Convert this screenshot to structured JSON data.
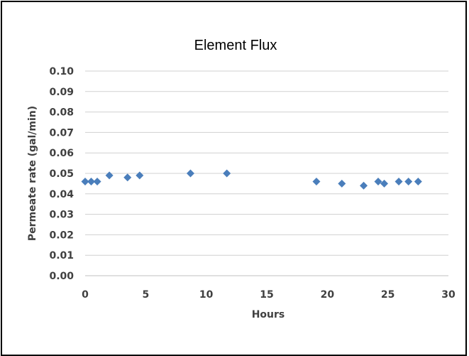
{
  "chart_data": {
    "type": "scatter",
    "title": "Element Flux",
    "xlabel": "Hours",
    "ylabel": "Permeate rate (gal/min)",
    "xlim": [
      0,
      30
    ],
    "ylim": [
      0,
      0.1
    ],
    "xticks": [
      "0",
      "5",
      "10",
      "15",
      "20",
      "25",
      "30"
    ],
    "yticks": [
      "0.00",
      "0.01",
      "0.02",
      "0.03",
      "0.04",
      "0.05",
      "0.06",
      "0.07",
      "0.08",
      "0.09",
      "0.10"
    ],
    "grid": "horizontal",
    "legend": "none",
    "marker": "diamond",
    "color": "#4A7EBB",
    "series": [
      {
        "x": [
          0,
          0.5,
          1,
          2,
          3.5,
          4.5,
          8.7,
          11.7,
          19.1,
          21.2,
          23,
          24.2,
          24.7,
          25.9,
          26.7,
          27.5
        ],
        "y": [
          0.046,
          0.046,
          0.046,
          0.049,
          0.048,
          0.049,
          0.05,
          0.05,
          0.046,
          0.045,
          0.044,
          0.046,
          0.045,
          0.046,
          0.046,
          0.046
        ]
      }
    ]
  }
}
